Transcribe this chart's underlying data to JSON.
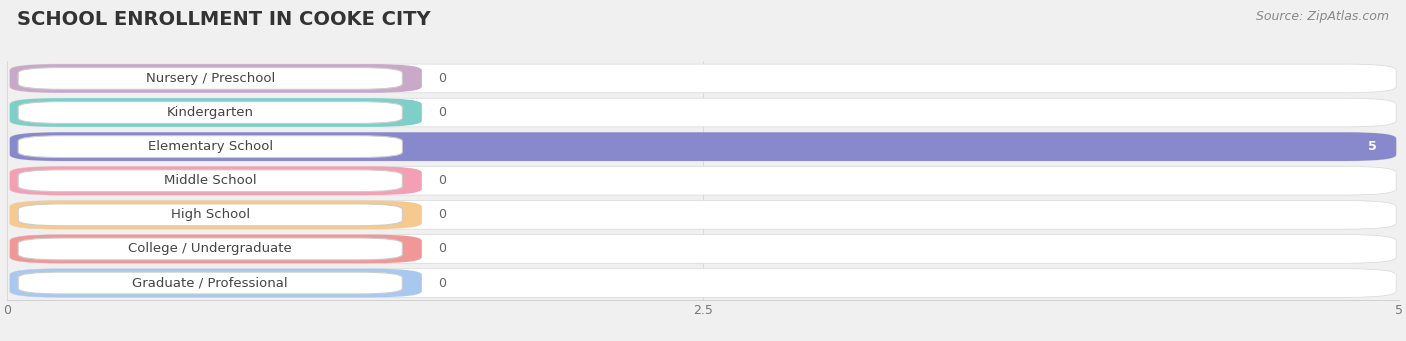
{
  "title": "SCHOOL ENROLLMENT IN COOKE CITY",
  "source": "Source: ZipAtlas.com",
  "categories": [
    "Nursery / Preschool",
    "Kindergarten",
    "Elementary School",
    "Middle School",
    "High School",
    "College / Undergraduate",
    "Graduate / Professional"
  ],
  "values": [
    0,
    0,
    5,
    0,
    0,
    0,
    0
  ],
  "bar_colors": [
    "#c9a8c8",
    "#7ecfc8",
    "#8888cc",
    "#f4a0b4",
    "#f5c990",
    "#f09898",
    "#a8c8f0"
  ],
  "label_bg_colors": [
    "#e8d4e8",
    "#b8e8e0",
    "#c8c8e8",
    "#f8c8d4",
    "#fae0b8",
    "#f8b8b8",
    "#c8dff8"
  ],
  "xlim": [
    0,
    5
  ],
  "xticks": [
    0,
    2.5,
    5
  ],
  "background_color": "#f0f0f0",
  "row_bg": "#ffffff",
  "title_fontsize": 14,
  "label_fontsize": 9.5,
  "value_fontsize": 9,
  "source_fontsize": 9
}
